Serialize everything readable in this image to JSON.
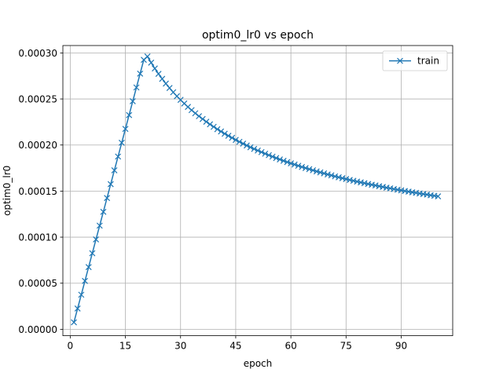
{
  "chart_data": {
    "type": "line",
    "title": "optim0_lr0 vs epoch",
    "xlabel": "epoch",
    "ylabel": "optim0_lr0",
    "xlim": [
      -2,
      104
    ],
    "ylim": [
      -7e-06,
      0.000308
    ],
    "x_ticks": [
      0,
      15,
      30,
      45,
      60,
      75,
      90
    ],
    "x_tick_labels": [
      "0",
      "15",
      "30",
      "45",
      "60",
      "75",
      "90"
    ],
    "y_ticks": [
      0,
      5e-05,
      0.0001,
      0.00015,
      0.0002,
      0.00025,
      0.0003
    ],
    "y_tick_labels": [
      "0.00000",
      "0.00005",
      "0.00010",
      "0.00015",
      "0.00020",
      "0.00025",
      "0.00030"
    ],
    "grid": true,
    "legend_position": "top-right",
    "warmup_epochs": 21,
    "peak_value": 0.0003,
    "series": [
      {
        "name": "train",
        "color": "#1f77b4",
        "marker": "x",
        "x_start": 1,
        "x_end": 100,
        "values": [
          7.5e-06,
          2.25e-05,
          3.75e-05,
          5.25e-05,
          6.75e-05,
          8.25e-05,
          9.75e-05,
          0.0001125,
          0.0001275,
          0.0001425,
          0.0001575,
          0.0001725,
          0.0001875,
          0.0002025,
          0.0002175,
          0.0002325,
          0.0002475,
          0.0002625,
          0.0002775,
          0.0002925,
          0.0002961,
          0.0002894,
          0.0002831,
          0.0002773,
          0.0002718,
          0.0002667,
          0.0002619,
          0.0002573,
          0.000253,
          0.000249,
          0.0002451,
          0.0002414,
          0.0002379,
          0.0002345,
          0.0002313,
          0.0002283,
          0.0002253,
          0.0002225,
          0.0002198,
          0.0002172,
          0.0002147,
          0.0002123,
          0.00021,
          0.0002078,
          0.0002056,
          0.0002035,
          0.0002015,
          0.0001995,
          0.0001976,
          0.0001958,
          0.000194,
          0.0001923,
          0.0001906,
          0.000189,
          0.0001874,
          0.0001859,
          0.0001844,
          0.0001829,
          0.0001815,
          0.0001801,
          0.0001788,
          0.0001775,
          0.0001762,
          0.000175,
          0.0001738,
          0.0001726,
          0.0001714,
          0.0001703,
          0.0001692,
          0.0001681,
          0.0001671,
          0.000166,
          0.000165,
          0.000164,
          0.0001631,
          0.0001621,
          0.0001612,
          0.0001603,
          0.0001594,
          0.0001586,
          0.0001577,
          0.0001569,
          0.0001561,
          0.0001553,
          0.0001545,
          0.0001537,
          0.000153,
          0.0001522,
          0.0001515,
          0.0001508,
          0.0001501,
          0.0001494,
          0.0001487,
          0.0001481,
          0.0001474,
          0.0001468,
          0.0001462,
          0.0001455,
          0.0001449,
          0.0001443
        ]
      }
    ]
  }
}
